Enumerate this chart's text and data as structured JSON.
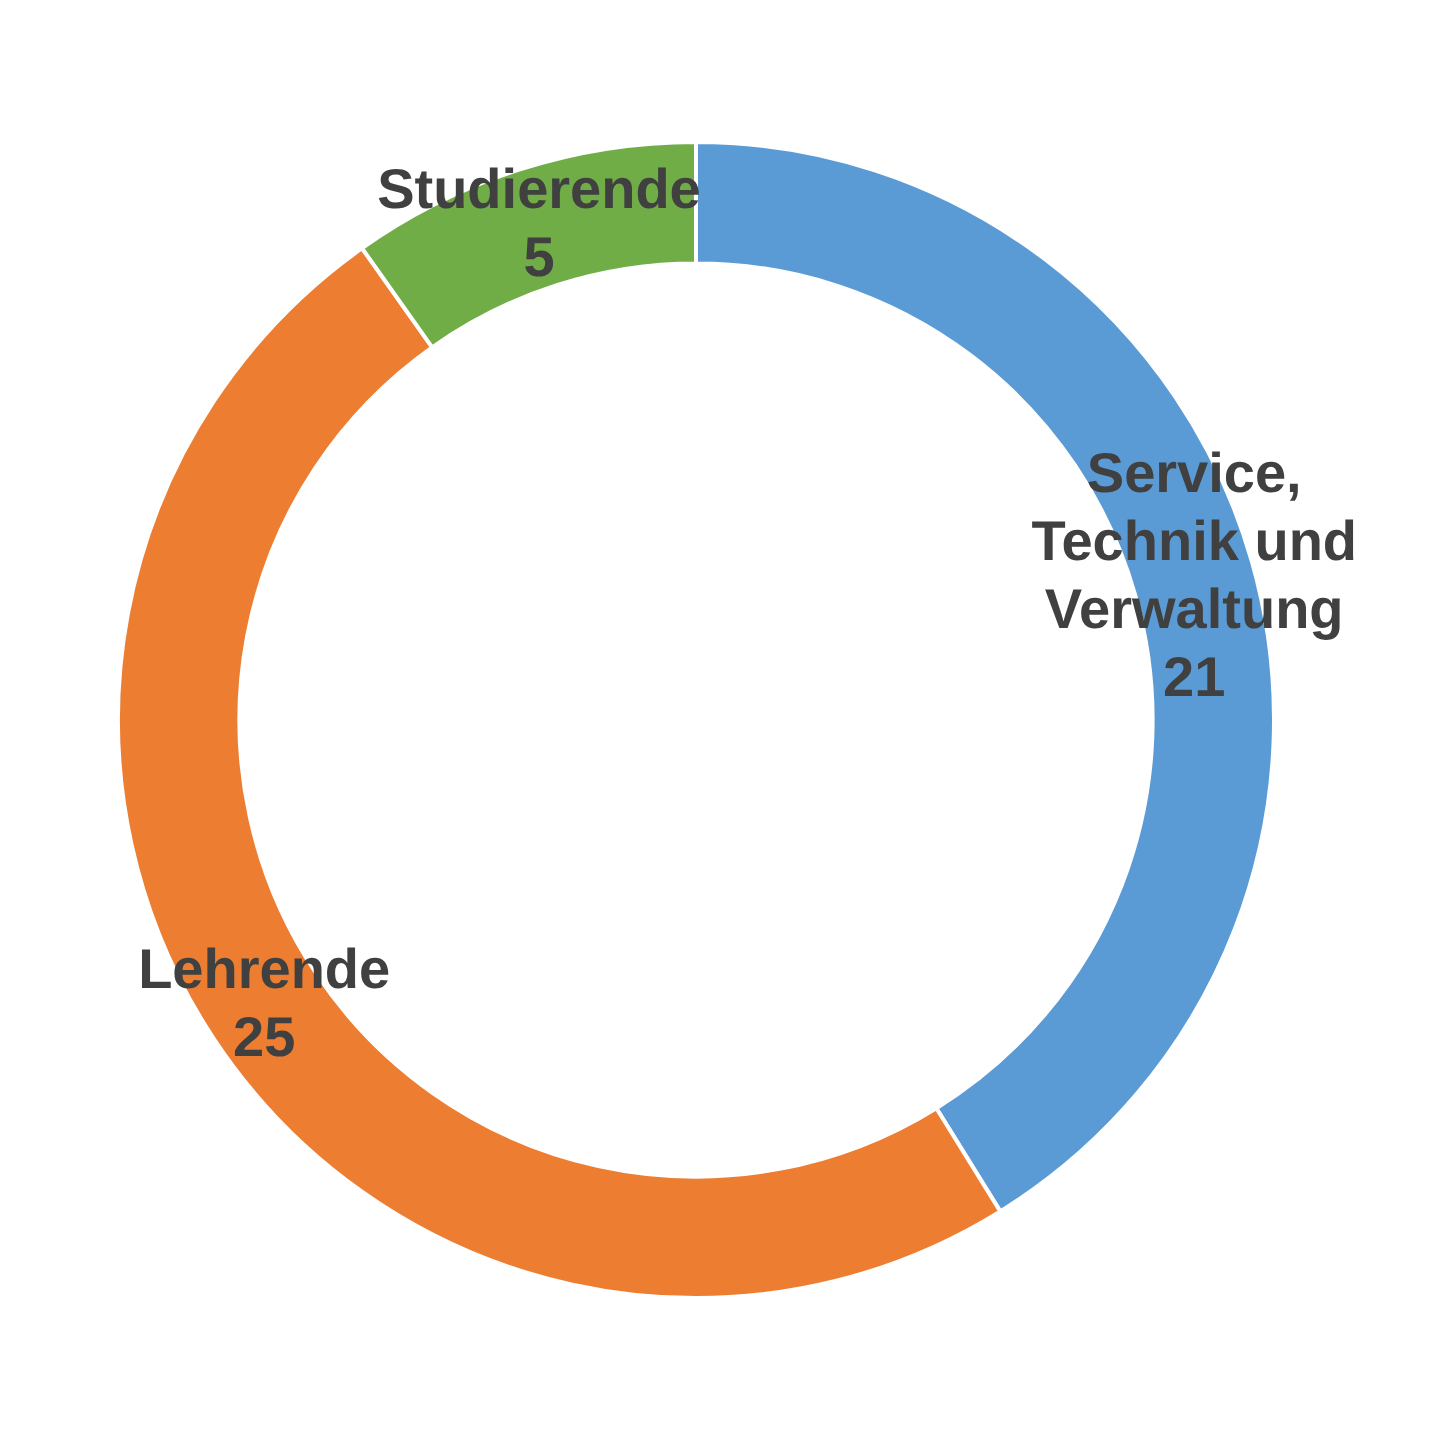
{
  "chart_data": {
    "type": "donut",
    "categories": [
      "Service, Technik und Verwaltung",
      "Lehrende",
      "Studierende"
    ],
    "values": [
      21,
      25,
      5
    ],
    "colors": [
      "#5b9bd5",
      "#ed7d31",
      "#70ad47"
    ],
    "data_labels": true,
    "legend": false
  }
}
